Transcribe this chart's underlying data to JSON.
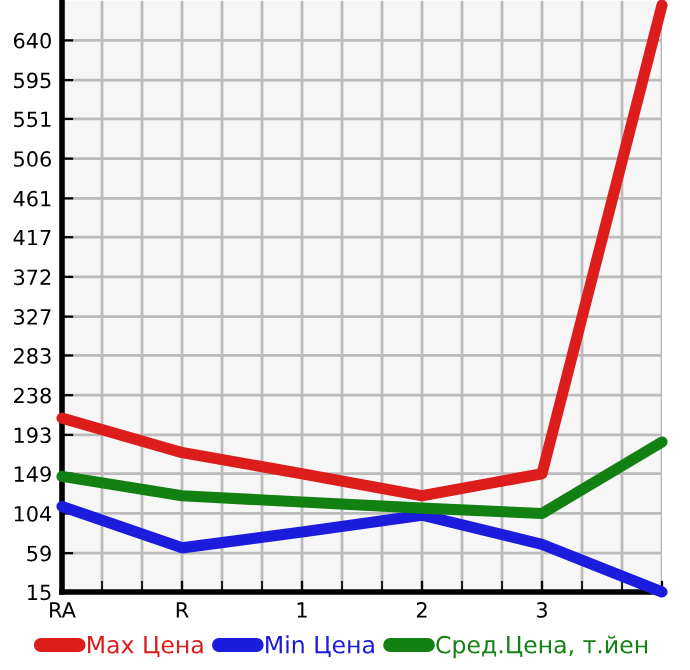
{
  "chart_data": {
    "type": "line",
    "categories": [
      "RA",
      "R",
      "1",
      "2",
      "3",
      null
    ],
    "series": [
      {
        "name": "Max Цена",
        "color": "#dd1c1c",
        "values": [
          212,
          173,
          149,
          124,
          149,
          680
        ]
      },
      {
        "name": "Min Цена",
        "color": "#1c1cdd",
        "values": [
          112,
          65,
          83,
          102,
          69,
          15
        ]
      },
      {
        "name": "Сред.Цена, т.йен",
        "color": "#138013",
        "values": [
          146,
          124,
          117,
          110,
          104,
          185
        ]
      }
    ],
    "ylim": [
      15,
      685
    ],
    "yticks": [
      15,
      59,
      104,
      149,
      193,
      238,
      283,
      327,
      372,
      417,
      461,
      506,
      551,
      595,
      640
    ],
    "grid": true,
    "legend": "bottom",
    "marker": "none",
    "line_style": "solid"
  }
}
